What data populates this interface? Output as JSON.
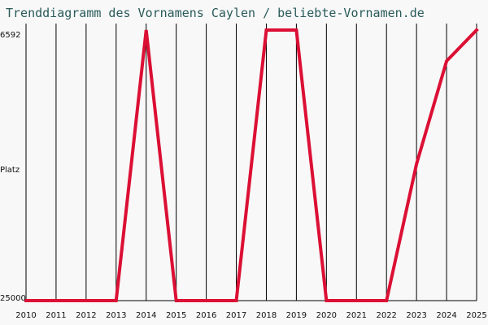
{
  "title": "Trenddiagramm des Vornamens Caylen / beliebte-Vornamen.de",
  "chart_data": {
    "type": "line",
    "title": "Trenddiagramm des Vornamens Caylen / beliebte-Vornamen.de",
    "xlabel": "",
    "ylabel": "Platz",
    "x": [
      2010,
      2011,
      2012,
      2013,
      2014,
      2015,
      2016,
      2017,
      2018,
      2019,
      2020,
      2021,
      2022,
      2023,
      2024,
      2025
    ],
    "series": [
      {
        "values": [
          25000,
          25000,
          25000,
          25000,
          6592,
          25000,
          25000,
          25000,
          6592,
          6592,
          25000,
          25000,
          25000,
          15700,
          8700,
          6592
        ]
      }
    ],
    "y_tick_labels": [
      "6592",
      "25000"
    ],
    "y_range": [
      6592,
      25000
    ],
    "y_inverted": true,
    "grid": "vertical",
    "colors": {
      "line": "#dc0f34",
      "grid": "#000000",
      "title": "#2a5a5a"
    }
  }
}
